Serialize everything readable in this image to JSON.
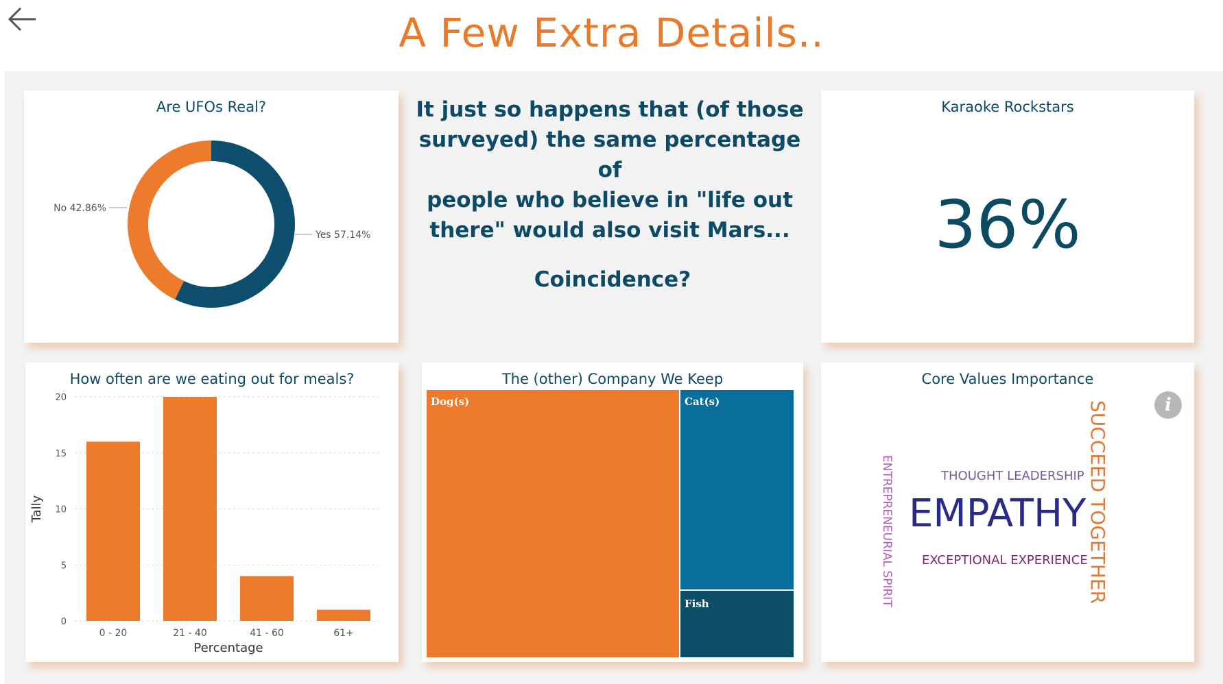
{
  "header": {
    "title": "A Few Extra Details..",
    "back_icon": "arrow-left-icon"
  },
  "ufo_card": {
    "title": "Are UFOs Real?",
    "chart_data": {
      "type": "pie",
      "title": "Are UFOs Real?",
      "donut": true,
      "slices": [
        {
          "label": "Yes",
          "value": 57.14,
          "color": "#0d4e6e"
        },
        {
          "label": "No",
          "value": 42.86,
          "color": "#ee7b2c"
        }
      ],
      "labels": [
        "Yes 57.14%",
        "No 42.86%"
      ]
    }
  },
  "message": {
    "line1": "It just so happens that (of those",
    "line2": "surveyed) the same percentage of",
    "line3": "people who believe in \"life out",
    "line4": "there\" would also visit Mars...",
    "punchline": "Coincidence?"
  },
  "karaoke_card": {
    "title": "Karaoke Rockstars",
    "value": "36%"
  },
  "meals_card": {
    "title": "How often are we eating out for meals?",
    "chart_data": {
      "type": "bar",
      "categories": [
        "0 - 20",
        "21 - 40",
        "41 - 60",
        "61+"
      ],
      "values": [
        16,
        20,
        4,
        1
      ],
      "xlabel": "Percentage",
      "ylabel": "Tally",
      "ylim": [
        0,
        20
      ],
      "yticks": [
        0,
        5,
        10,
        15,
        20
      ],
      "color": "#ee7b2c",
      "grid": true
    }
  },
  "pets_card": {
    "title": "The (other) Company We Keep",
    "chart_data": {
      "type": "treemap",
      "items": [
        {
          "label": "Dog(s)",
          "color": "#ee7b2c"
        },
        {
          "label": "Cat(s)",
          "color": "#0a6e9c"
        },
        {
          "label": "Fish",
          "color": "#0c4e66"
        }
      ]
    }
  },
  "values_card": {
    "title": "Core Values Importance",
    "info_icon": "info-icon",
    "words": {
      "empathy": "EMPATHY",
      "thought": "THOUGHT LEADERSHIP",
      "exceptional": "EXCEPTIONAL EXPERIENCE",
      "entrepreneurial": "ENTREPRENEURIAL SPIRIT",
      "succeed": "SUCCEED TOGETHER"
    },
    "colors": {
      "empathy": "#2a2a8a",
      "thought": "#7a5a9a",
      "exceptional": "#7a2a6a",
      "entrepreneurial": "#b35ac0",
      "succeed": "#e07a3a"
    }
  }
}
